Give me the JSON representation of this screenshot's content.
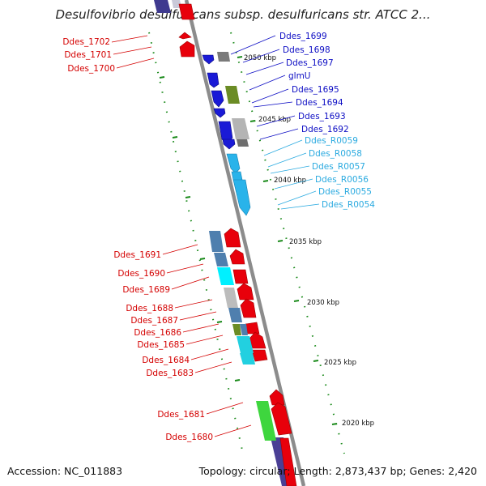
{
  "title": "Desulfovibrio desulfuricans subsp. desulfuricans str. ATCC 2...",
  "accession_label": "Accession: NC_011883",
  "summary_label": "Topology: circular; Length: 2,873,437 bp; Genes: 2,420",
  "colors": {
    "backbone": "#8c8c8c",
    "forward_cds": "#e8000b",
    "reverse_cds": "#1a1ad6",
    "rna": "#29b3ea",
    "tick": "#1a8a1a",
    "label_red": "#d40000",
    "label_blue": "#0d0dc4",
    "label_cyan": "#2aaae0"
  },
  "kbp_ticks": [
    "2050 kbp",
    "2045 kbp",
    "2040 kbp",
    "2035 kbp",
    "2030 kbp",
    "2025 kbp",
    "2020 kbp"
  ],
  "left_labels": [
    "Ddes_1702",
    "Ddes_1701",
    "Ddes_1700",
    "Ddes_1691",
    "Ddes_1690",
    "Ddes_1689",
    "Ddes_1688",
    "Ddes_1687",
    "Ddes_1686",
    "Ddes_1685",
    "Ddes_1684",
    "Ddes_1683",
    "Ddes_1681",
    "Ddes_1680"
  ],
  "right_labels": [
    "Ddes_1699",
    "Ddes_1698",
    "Ddes_1697",
    "glmU",
    "Ddes_1695",
    "Ddes_1694",
    "Ddes_1693",
    "Ddes_1692",
    "Ddes_R0059",
    "Ddes_R0058",
    "Ddes_R0057",
    "Ddes_R0056",
    "Ddes_R0055",
    "Ddes_R0054"
  ]
}
